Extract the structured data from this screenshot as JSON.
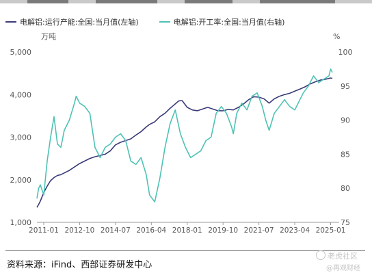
{
  "legend": {
    "series1": "电解铝:运行产能:全国:当月值(左轴)",
    "series2": "电解铝:开工率:全国:当月值(右轴)"
  },
  "chart_data": {
    "type": "line",
    "left_unit": "万吨",
    "right_unit": "%",
    "x_ticks": [
      "2011-01",
      "2012-10",
      "2014-07",
      "2016-04",
      "2018-01",
      "2019-10",
      "2021-07",
      "2023-04",
      "2025-01"
    ],
    "y_left_ticks": [
      "5,000",
      "4,000",
      "3,000",
      "2,000",
      "1,000"
    ],
    "y_right_ticks": [
      "100",
      "95",
      "90",
      "85",
      "80",
      "75"
    ],
    "y_left_range": [
      1000,
      5000
    ],
    "y_right_range": [
      75,
      100
    ],
    "x_range": [
      "2010-09",
      "2025-02"
    ],
    "grid": false,
    "legend_position": "top",
    "colors": {
      "series1": "#3a3a78",
      "series2": "#4ec2b4"
    },
    "series": [
      {
        "name": "电解铝:运行产能:全国:当月值(左轴)",
        "axis": "left",
        "x": [
          "2010-09",
          "2010-10",
          "2010-11",
          "2011-01",
          "2011-03",
          "2011-05",
          "2011-07",
          "2011-09",
          "2011-11",
          "2012-01",
          "2012-04",
          "2012-07",
          "2012-10",
          "2013-01",
          "2013-04",
          "2013-07",
          "2013-10",
          "2014-01",
          "2014-04",
          "2014-07",
          "2014-10",
          "2015-01",
          "2015-04",
          "2015-07",
          "2015-10",
          "2016-01",
          "2016-03",
          "2016-06",
          "2016-09",
          "2016-12",
          "2017-03",
          "2017-06",
          "2017-08",
          "2017-10",
          "2018-01",
          "2018-04",
          "2018-07",
          "2018-10",
          "2019-01",
          "2019-04",
          "2019-07",
          "2019-10",
          "2020-01",
          "2020-04",
          "2020-07",
          "2020-10",
          "2021-01",
          "2021-04",
          "2021-07",
          "2021-10",
          "2022-01",
          "2022-04",
          "2022-07",
          "2022-10",
          "2023-01",
          "2023-04",
          "2023-07",
          "2023-10",
          "2024-01",
          "2024-04",
          "2024-07",
          "2024-10",
          "2025-01",
          "2025-02"
        ],
        "values": [
          1350,
          1420,
          1500,
          1700,
          1850,
          1980,
          2050,
          2100,
          2120,
          2160,
          2220,
          2300,
          2380,
          2440,
          2500,
          2540,
          2570,
          2600,
          2680,
          2820,
          2880,
          2920,
          2960,
          3050,
          3130,
          3240,
          3300,
          3360,
          3480,
          3560,
          3680,
          3780,
          3850,
          3860,
          3700,
          3640,
          3620,
          3660,
          3700,
          3660,
          3620,
          3620,
          3650,
          3640,
          3700,
          3780,
          3880,
          3950,
          3940,
          3900,
          3800,
          3900,
          3960,
          4000,
          4030,
          4080,
          4130,
          4180,
          4250,
          4300,
          4340,
          4360,
          4390,
          4380
        ]
      },
      {
        "name": "电解铝:开工率:全国:当月值(右轴)",
        "axis": "right",
        "x": [
          "2010-09",
          "2010-10",
          "2010-11",
          "2011-01",
          "2011-03",
          "2011-05",
          "2011-07",
          "2011-09",
          "2011-11",
          "2012-01",
          "2012-04",
          "2012-07",
          "2012-08",
          "2012-10",
          "2013-01",
          "2013-04",
          "2013-07",
          "2013-10",
          "2014-01",
          "2014-04",
          "2014-07",
          "2014-10",
          "2015-01",
          "2015-04",
          "2015-07",
          "2015-10",
          "2016-01",
          "2016-03",
          "2016-06",
          "2016-09",
          "2016-12",
          "2017-03",
          "2017-06",
          "2017-09",
          "2017-12",
          "2018-03",
          "2018-06",
          "2018-09",
          "2018-12",
          "2019-03",
          "2019-06",
          "2019-09",
          "2019-12",
          "2020-03",
          "2020-04",
          "2020-06",
          "2020-09",
          "2020-12",
          "2021-03",
          "2021-06",
          "2021-09",
          "2021-11",
          "2022-01",
          "2022-04",
          "2022-07",
          "2022-10",
          "2023-01",
          "2023-04",
          "2023-06",
          "2023-09",
          "2023-12",
          "2024-03",
          "2024-06",
          "2024-09",
          "2024-12",
          "2025-01",
          "2025-02"
        ],
        "values": [
          78.5,
          80.0,
          80.5,
          79.0,
          84.0,
          87.5,
          90.5,
          86.5,
          86.0,
          88.5,
          90.0,
          92.5,
          93.5,
          92.5,
          92.0,
          91.0,
          86.0,
          84.5,
          86.0,
          86.5,
          87.5,
          88.0,
          87.0,
          84.0,
          83.5,
          84.5,
          82.0,
          79.0,
          78.0,
          81.5,
          86.0,
          89.5,
          91.5,
          88.0,
          86.0,
          84.5,
          85.0,
          85.5,
          87.0,
          87.5,
          91.0,
          92.0,
          91.0,
          89.0,
          88.0,
          91.0,
          92.5,
          91.5,
          93.5,
          94.0,
          92.0,
          90.0,
          88.5,
          91.0,
          92.0,
          93.0,
          92.0,
          91.5,
          92.5,
          94.0,
          95.0,
          96.5,
          95.5,
          96.0,
          96.5,
          97.5,
          97.0
        ]
      }
    ]
  },
  "source": "资料来源：iFind、西部证券研发中心",
  "watermark": {
    "line1": "老虎社区",
    "line2": "@再观财经"
  }
}
